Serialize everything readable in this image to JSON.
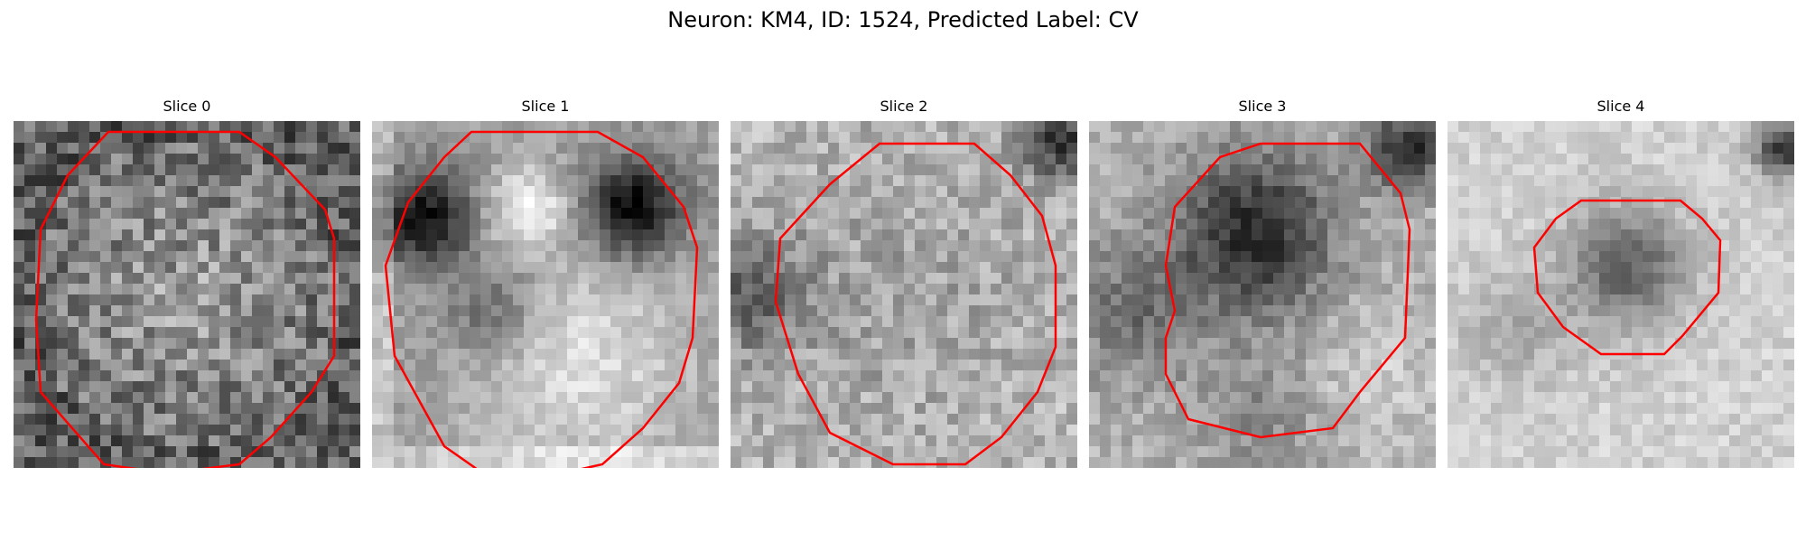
{
  "figure": {
    "title": "Neuron: KM4, ID: 1524, Predicted Label: CV"
  },
  "contour_color": "#ff0000",
  "panels": [
    {
      "title": "Slice 0"
    },
    {
      "title": "Slice 1"
    },
    {
      "title": "Slice 2"
    },
    {
      "title": "Slice 3"
    },
    {
      "title": "Slice 4"
    }
  ]
}
